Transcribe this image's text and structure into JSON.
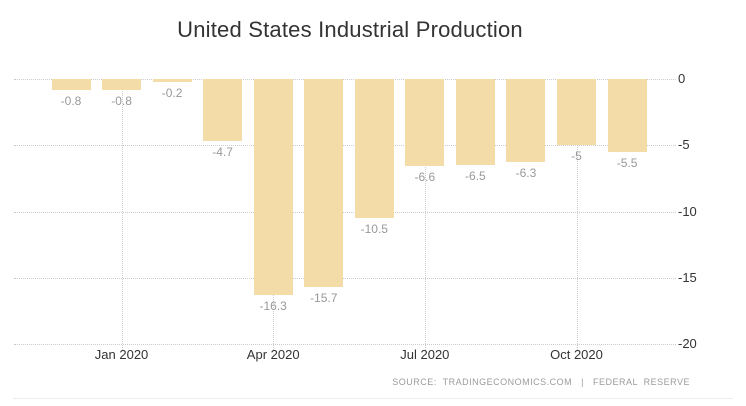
{
  "title": "United States Industrial Production",
  "source": "SOURCE:  TRADINGECONOMICS.COM   |   FEDERAL  RESERVE",
  "colors": {
    "bar": "#f3dca8",
    "grid": "#cccccc",
    "value_label": "#999999",
    "axis_label": "#333333",
    "title": "#333333",
    "source": "#9b9b9b",
    "background": "#ffffff"
  },
  "chart_data": {
    "type": "bar",
    "title": "United States Industrial Production",
    "values": [
      -0.8,
      -0.8,
      -0.2,
      -4.7,
      -16.3,
      -15.7,
      -10.5,
      -6.6,
      -6.5,
      -6.3,
      -5,
      -5.5
    ],
    "bar_labels": [
      "-0.8",
      "-0.8",
      "-0.2",
      "-4.7",
      "-16.3",
      "-15.7",
      "-10.5",
      "-6.6",
      "-6.5",
      "-6.3",
      "-5",
      "-5.5"
    ],
    "x_tick_labels": [
      "Jan 2020",
      "Apr 2020",
      "Jul 2020",
      "Oct 2020"
    ],
    "x_tick_bar_index": [
      1,
      4,
      7,
      10
    ],
    "y_ticks": [
      0,
      -5,
      -10,
      -15,
      -20
    ],
    "y_tick_labels": [
      "0",
      "-5",
      "-10",
      "-15",
      "-20"
    ],
    "ylim": [
      -20,
      0
    ],
    "grid": "dotted",
    "gridlines": "horizontal at every 5 units, vertical at quarter ticks",
    "legend": "none",
    "bar_color": "#f3dca8",
    "source": "SOURCE: TRADINGECONOMICS.COM | FEDERAL RESERVE"
  }
}
